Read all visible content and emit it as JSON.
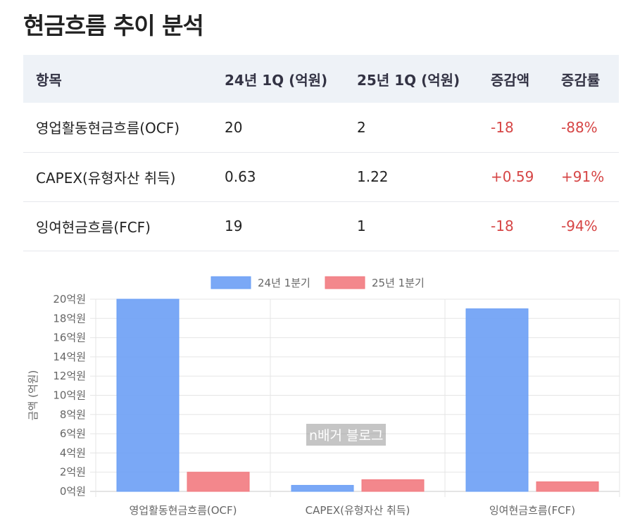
{
  "page": {
    "title": "현금흐름 추이 분석",
    "watermark": "n배거 블로그"
  },
  "table": {
    "headers": [
      "항목",
      "24년 1Q (억원)",
      "25년 1Q (억원)",
      "증감액",
      "증감률"
    ],
    "rows": [
      [
        "영업활동현금흐름(OCF)",
        "20",
        "2",
        "-18",
        "-88%"
      ],
      [
        "CAPEX(유형자산 취득)",
        "0.63",
        "1.22",
        "+0.59",
        "+91%"
      ],
      [
        "잉여현금흐름(FCF)",
        "19",
        "1",
        "-18",
        "-94%"
      ]
    ]
  },
  "chart_data": {
    "type": "bar",
    "categories": [
      "영업활동현금흐름(OCF)",
      "CAPEX(유형자산 취득)",
      "잉여현금흐름(FCF)"
    ],
    "series": [
      {
        "name": "24년 1분기",
        "values": [
          20,
          0.63,
          19
        ],
        "color": "#6b9ff5"
      },
      {
        "name": "25년 1분기",
        "values": [
          2,
          1.22,
          1
        ],
        "color": "#f27a7f"
      }
    ],
    "ylabel": "금액 (억원)",
    "ylim": [
      0,
      20
    ],
    "yticks": [
      "0억원",
      "2억원",
      "4억원",
      "6억원",
      "8억원",
      "10억원",
      "12억원",
      "14억원",
      "16억원",
      "18억원",
      "20억원"
    ],
    "legend": "top-center",
    "grid": true
  }
}
